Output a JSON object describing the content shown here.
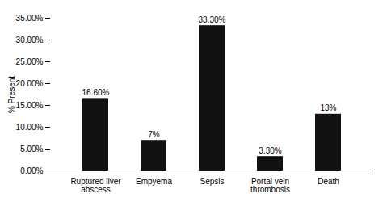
{
  "chart_data": {
    "type": "bar",
    "ylabel": "% Present",
    "categories": [
      "Ruptured liver\nabscess",
      "Empyema",
      "Sepsis",
      "Portal vein\nthrombosis",
      "Death"
    ],
    "values": [
      16.6,
      7.0,
      33.3,
      3.3,
      13.0
    ],
    "value_labels": [
      "16.60%",
      "7%",
      "33.30%",
      "3.30%",
      "13%"
    ],
    "data_labels": true,
    "color": "#111111",
    "ylim": [
      0,
      35
    ],
    "yticks": [
      {
        "value": 0,
        "label": "0.00%"
      },
      {
        "value": 5,
        "label": "5.00%"
      },
      {
        "value": 10,
        "label": "10.00%"
      },
      {
        "value": 15,
        "label": "15.00%"
      },
      {
        "value": 20,
        "label": "20.00%"
      },
      {
        "value": 25,
        "label": "25.00%"
      },
      {
        "value": 30,
        "label": "30.00%"
      },
      {
        "value": 35,
        "label": "35.00%"
      }
    ],
    "grid": false
  }
}
